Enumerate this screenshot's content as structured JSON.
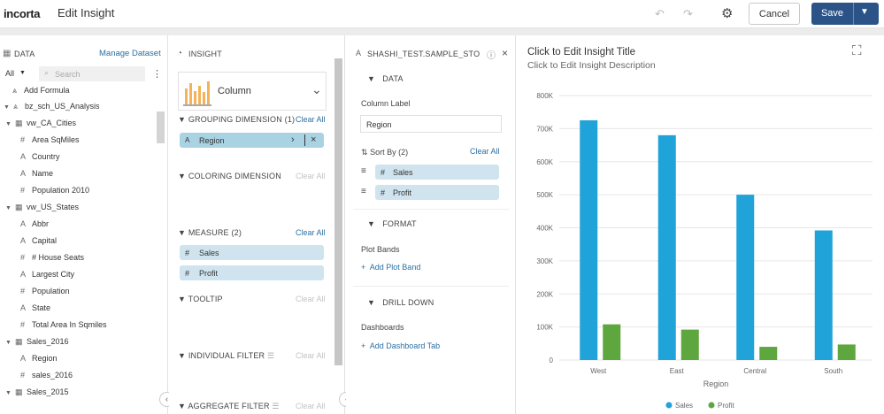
{
  "header": {
    "logo": "incorta",
    "title": "Edit Insight",
    "cancel": "Cancel",
    "save": "Save"
  },
  "data_panel": {
    "title": "DATA",
    "manage": "Manage Dataset",
    "filter_value": "All",
    "search_placeholder": "Search",
    "add_formula": "Add Formula",
    "tree": [
      {
        "label": "bz_sch_US_Analysis",
        "level": 0,
        "kind": "schema"
      },
      {
        "label": "vw_CA_Cities",
        "level": 1,
        "kind": "table"
      },
      {
        "label": "Area SqMiles",
        "level": 2,
        "kind": "num"
      },
      {
        "label": "Country",
        "level": 2,
        "kind": "text"
      },
      {
        "label": "Name",
        "level": 2,
        "kind": "text"
      },
      {
        "label": "Population 2010",
        "level": 2,
        "kind": "num"
      },
      {
        "label": "vw_US_States",
        "level": 1,
        "kind": "table"
      },
      {
        "label": "Abbr",
        "level": 2,
        "kind": "text"
      },
      {
        "label": "Capital",
        "level": 2,
        "kind": "text"
      },
      {
        "label": "# House Seats",
        "level": 2,
        "kind": "num"
      },
      {
        "label": "Largest City",
        "level": 2,
        "kind": "text"
      },
      {
        "label": "Population",
        "level": 2,
        "kind": "num"
      },
      {
        "label": "State",
        "level": 2,
        "kind": "text"
      },
      {
        "label": "Total Area In Sqmiles",
        "level": 2,
        "kind": "num"
      },
      {
        "label": "Sales_2016",
        "level": 1,
        "kind": "table"
      },
      {
        "label": "Region",
        "level": 2,
        "kind": "text"
      },
      {
        "label": "sales_2016",
        "level": 2,
        "kind": "num"
      },
      {
        "label": "Sales_2015",
        "level": 1,
        "kind": "table"
      }
    ]
  },
  "insight_panel": {
    "title": "INSIGHT",
    "chart_type": "Column",
    "clear_all": "Clear All",
    "grouping": "GROUPING DIMENSION",
    "grouping_count": "(1)",
    "grouping_item": "Region",
    "coloring": "COLORING DIMENSION",
    "measure": "MEASURE",
    "measure_count": "(2)",
    "measure_items": [
      "Sales",
      "Profit"
    ],
    "tooltip": "TOOLTIP",
    "individual_filter": "INDIVIDUAL FILTER",
    "aggregate_filter": "AGGREGATE FILTER"
  },
  "props_panel": {
    "title": "SHASHI_TEST.SAMPLE_STOR...",
    "data": "DATA",
    "column_label": "Column Label",
    "column_label_value": "Region",
    "sort_by": "Sort By",
    "sort_count": "(2)",
    "clear_all": "Clear All",
    "sort_items": [
      "Sales",
      "Profit"
    ],
    "format": "FORMAT",
    "plot_bands": "Plot Bands",
    "add_plot_band": "Add Plot Band",
    "drill_down": "DRILL DOWN",
    "dashboards": "Dashboards",
    "add_dashboard_tab": "Add Dashboard Tab"
  },
  "chart_panel": {
    "title": "Click to Edit Insight Title",
    "description": "Click to Edit Insight Description"
  },
  "chart_data": {
    "type": "bar",
    "categories": [
      "West",
      "East",
      "Central",
      "South"
    ],
    "series": [
      {
        "name": "Sales",
        "values": [
          725000,
          680000,
          500000,
          392000
        ],
        "color": "#1fa3d8"
      },
      {
        "name": "Profit",
        "values": [
          108000,
          92000,
          40000,
          47000
        ],
        "color": "#5ea63e"
      }
    ],
    "xlabel": "Region",
    "ylim": [
      0,
      800000
    ],
    "yticks": [
      "0",
      "100K",
      "200K",
      "300K",
      "400K",
      "500K",
      "600K",
      "700K",
      "800K"
    ],
    "legend": "bottom-center"
  }
}
